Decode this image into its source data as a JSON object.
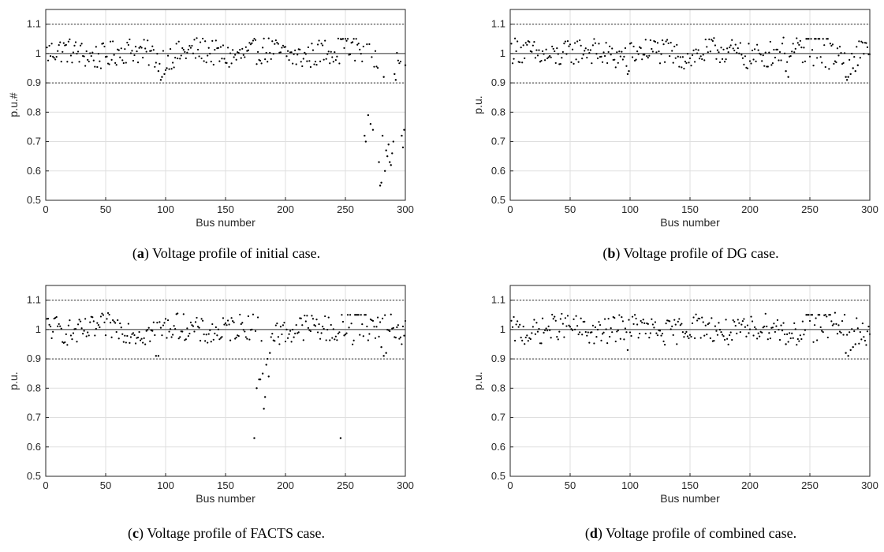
{
  "chart_data": [
    {
      "type": "scatter",
      "caption_letter": "a",
      "caption_text": " Voltage profile of initial case.",
      "xlabel": "Bus number",
      "ylabel": "p.u.#",
      "xlim": [
        0,
        300
      ],
      "ylim": [
        0.5,
        1.15
      ],
      "xticks": [
        "0",
        "50",
        "100",
        "150",
        "200",
        "250",
        "300"
      ],
      "yticks": [
        "0.5",
        "0.6",
        "0.7",
        "0.8",
        "0.9",
        "1",
        "1.1"
      ],
      "reference_lines": [
        1.1,
        1.0,
        0.9
      ],
      "grid": true,
      "anomalies": [
        [
          266,
          0.72
        ],
        [
          267,
          0.7
        ],
        [
          269,
          0.79
        ],
        [
          271,
          0.76
        ],
        [
          273,
          0.74
        ],
        [
          278,
          0.63
        ],
        [
          279,
          0.55
        ],
        [
          280,
          0.56
        ],
        [
          281,
          0.72
        ],
        [
          283,
          0.6
        ],
        [
          284,
          0.67
        ],
        [
          285,
          0.65
        ],
        [
          286,
          0.69
        ],
        [
          287,
          0.63
        ],
        [
          288,
          0.62
        ],
        [
          289,
          0.66
        ],
        [
          290,
          0.7
        ],
        [
          291,
          0.93
        ],
        [
          297,
          0.72
        ],
        [
          298,
          0.68
        ],
        [
          299,
          0.74
        ],
        [
          300,
          0.96
        ],
        [
          96,
          0.91
        ],
        [
          97,
          0.92
        ],
        [
          99,
          0.93
        ],
        [
          94,
          0.94
        ],
        [
          101,
          0.95
        ],
        [
          282,
          0.92
        ],
        [
          292,
          0.91
        ]
      ]
    },
    {
      "type": "scatter",
      "caption_letter": "b",
      "caption_text": " Voltage profile of DG case.",
      "xlabel": "Bus number",
      "ylabel": "p.u.",
      "xlim": [
        0,
        300
      ],
      "ylim": [
        0.5,
        1.15
      ],
      "xticks": [
        "0",
        "50",
        "100",
        "150",
        "200",
        "250",
        "300"
      ],
      "yticks": [
        "0.5",
        "0.6",
        "0.7",
        "0.8",
        "0.9",
        "1",
        "1.1"
      ],
      "reference_lines": [
        1.1,
        1.0,
        0.9
      ],
      "grid": true,
      "anomalies": [
        [
          98,
          0.93
        ],
        [
          99,
          0.94
        ],
        [
          280,
          0.92
        ],
        [
          281,
          0.91
        ],
        [
          282,
          0.92
        ],
        [
          284,
          0.93
        ],
        [
          286,
          0.95
        ],
        [
          288,
          0.94
        ],
        [
          290,
          0.96
        ],
        [
          230,
          0.94
        ],
        [
          232,
          0.92
        ]
      ]
    },
    {
      "type": "scatter",
      "caption_letter": "c",
      "caption_text": " Voltage profile of FACTS case.",
      "xlabel": "Bus number",
      "ylabel": "p.u.",
      "xlim": [
        0,
        300
      ],
      "ylim": [
        0.5,
        1.15
      ],
      "xticks": [
        "0",
        "50",
        "100",
        "150",
        "200",
        "250",
        "300"
      ],
      "yticks": [
        "0.5",
        "0.6",
        "0.7",
        "0.8",
        "0.9",
        "1",
        "1.1"
      ],
      "reference_lines": [
        1.1,
        1.0,
        0.9
      ],
      "grid": true,
      "anomalies": [
        [
          174,
          0.63
        ],
        [
          176,
          0.8
        ],
        [
          178,
          0.83
        ],
        [
          179,
          0.83
        ],
        [
          181,
          0.85
        ],
        [
          182,
          0.73
        ],
        [
          183,
          0.77
        ],
        [
          184,
          0.88
        ],
        [
          185,
          0.9
        ],
        [
          186,
          0.84
        ],
        [
          187,
          0.92
        ],
        [
          246,
          0.63
        ],
        [
          92,
          0.91
        ],
        [
          94,
          0.91
        ],
        [
          282,
          0.91
        ],
        [
          284,
          0.92
        ],
        [
          280,
          0.94
        ]
      ]
    },
    {
      "type": "scatter",
      "caption_letter": "d",
      "caption_text": " Voltage profile of combined case.",
      "xlabel": "Bus number",
      "ylabel": "p.u.",
      "xlim": [
        0,
        300
      ],
      "ylim": [
        0.5,
        1.15
      ],
      "xticks": [
        "0",
        "50",
        "100",
        "150",
        "200",
        "250",
        "300"
      ],
      "yticks": [
        "0.5",
        "0.6",
        "0.7",
        "0.8",
        "0.9",
        "1",
        "1.1"
      ],
      "reference_lines": [
        1.1,
        1.0,
        0.9
      ],
      "grid": true,
      "anomalies": [
        [
          98,
          0.93
        ],
        [
          280,
          0.92
        ],
        [
          282,
          0.91
        ],
        [
          284,
          0.93
        ],
        [
          286,
          0.94
        ],
        [
          288,
          0.95
        ],
        [
          230,
          0.95
        ]
      ]
    }
  ]
}
